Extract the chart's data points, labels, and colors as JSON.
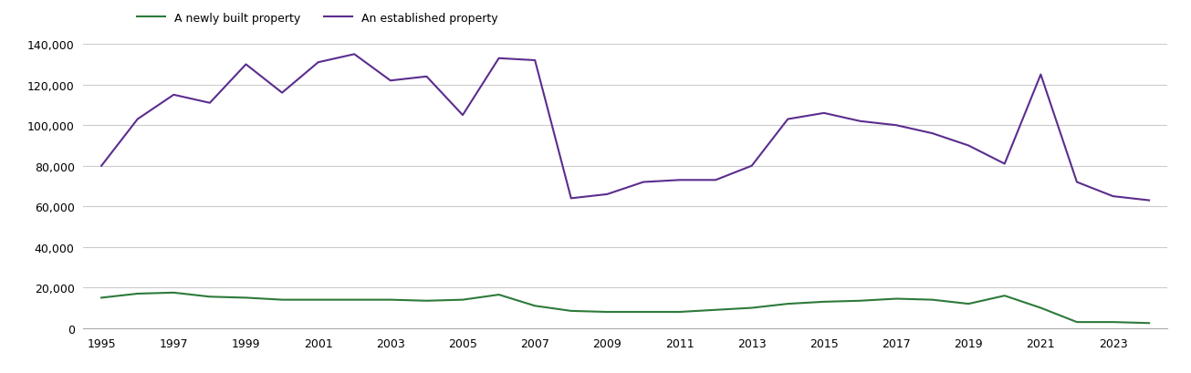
{
  "years": [
    1995,
    1996,
    1997,
    1998,
    1999,
    2000,
    2001,
    2002,
    2003,
    2004,
    2005,
    2006,
    2007,
    2008,
    2009,
    2010,
    2011,
    2012,
    2013,
    2014,
    2015,
    2016,
    2017,
    2018,
    2019,
    2020,
    2021,
    2022,
    2023,
    2024
  ],
  "new_homes": [
    15000,
    17000,
    17500,
    15500,
    15000,
    14000,
    14000,
    14000,
    14000,
    13500,
    14000,
    16500,
    11000,
    8500,
    8000,
    8000,
    8000,
    9000,
    10000,
    12000,
    13000,
    13500,
    14500,
    14000,
    12000,
    16000,
    10000,
    3000,
    3000,
    2500
  ],
  "established_homes": [
    80000,
    103000,
    115000,
    111000,
    130000,
    116000,
    131000,
    135000,
    122000,
    124000,
    105000,
    133000,
    132000,
    64000,
    66000,
    72000,
    73000,
    73000,
    80000,
    103000,
    106000,
    102000,
    100000,
    96000,
    90000,
    81000,
    125000,
    72000,
    65000,
    63000
  ],
  "new_color": "#2d7a3a",
  "established_color": "#5b2d8e",
  "new_label": "A newly built property",
  "established_label": "An established property",
  "ylim": [
    0,
    140000
  ],
  "yticks": [
    0,
    20000,
    40000,
    60000,
    80000,
    100000,
    120000,
    140000
  ],
  "xtick_years": [
    1995,
    1997,
    1999,
    2001,
    2003,
    2005,
    2007,
    2009,
    2011,
    2013,
    2015,
    2017,
    2019,
    2021,
    2023
  ],
  "grid_color": "#cccccc",
  "background_color": "#ffffff",
  "line_width": 1.5
}
